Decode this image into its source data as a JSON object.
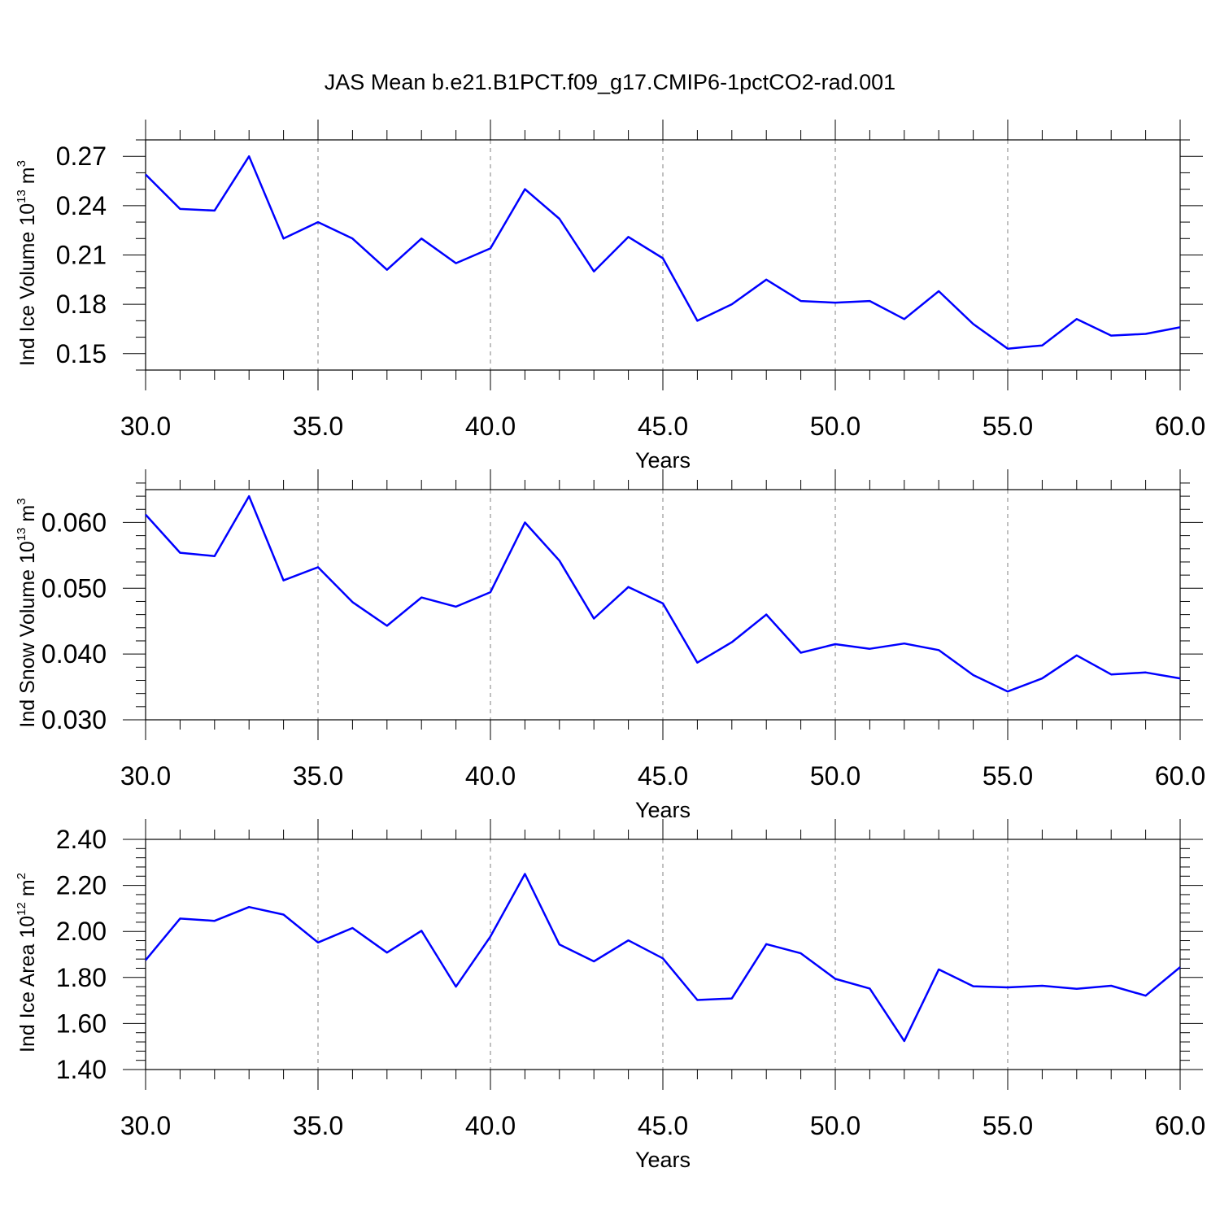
{
  "title": "JAS Mean b.e21.B1PCT.f09_g17.CMIP6-1pctCO2-rad.001",
  "colors": {
    "line": "#0000ff",
    "axis": "#000000",
    "grid": "#808080"
  },
  "chart_data": [
    {
      "type": "line",
      "ylabel": "Ind Ice Volume 10",
      "ylabel_exp": "13",
      "ylabel_unit": " m",
      "ylabel_unit_exp": "3",
      "xlabel": "Years",
      "xlim": [
        30,
        60
      ],
      "ylim": [
        0.14,
        0.28
      ],
      "ymajor": [
        0.15,
        0.18,
        0.21,
        0.24,
        0.27
      ],
      "ytick_labels": [
        "0.15",
        "0.18",
        "0.21",
        "0.24",
        "0.27"
      ],
      "yminor_step": 0.01,
      "xmajor": [
        30,
        35,
        40,
        45,
        50,
        55,
        60
      ],
      "xtick_labels": [
        "30.0",
        "35.0",
        "40.0",
        "45.0",
        "50.0",
        "55.0",
        "60.0"
      ],
      "x": [
        30,
        31,
        32,
        33,
        34,
        35,
        36,
        37,
        38,
        39,
        40,
        41,
        42,
        43,
        44,
        45,
        46,
        47,
        48,
        49,
        50,
        51,
        52,
        53,
        54,
        55,
        56,
        57,
        58,
        59,
        60
      ],
      "series": [
        {
          "name": "Ind Ice Volume",
          "values": [
            0.259,
            0.238,
            0.237,
            0.27,
            0.22,
            0.23,
            0.22,
            0.201,
            0.22,
            0.205,
            0.214,
            0.25,
            0.232,
            0.2,
            0.221,
            0.208,
            0.17,
            0.18,
            0.195,
            0.182,
            0.181,
            0.182,
            0.171,
            0.188,
            0.168,
            0.153,
            0.155,
            0.171,
            0.161,
            0.162,
            0.166
          ]
        }
      ]
    },
    {
      "type": "line",
      "ylabel": "Ind Snow Volume 10",
      "ylabel_exp": "13",
      "ylabel_unit": " m",
      "ylabel_unit_exp": "3",
      "xlabel": "Years",
      "xlim": [
        30,
        60
      ],
      "ylim": [
        0.03,
        0.065
      ],
      "ymajor": [
        0.03,
        0.04,
        0.05,
        0.06
      ],
      "ytick_labels": [
        "0.030",
        "0.040",
        "0.050",
        "0.060"
      ],
      "yminor_step": 0.002,
      "xmajor": [
        30,
        35,
        40,
        45,
        50,
        55,
        60
      ],
      "xtick_labels": [
        "30.0",
        "35.0",
        "40.0",
        "45.0",
        "50.0",
        "55.0",
        "60.0"
      ],
      "x": [
        30,
        31,
        32,
        33,
        34,
        35,
        36,
        37,
        38,
        39,
        40,
        41,
        42,
        43,
        44,
        45,
        46,
        47,
        48,
        49,
        50,
        51,
        52,
        53,
        54,
        55,
        56,
        57,
        58,
        59,
        60
      ],
      "series": [
        {
          "name": "Ind Snow Volume",
          "values": [
            0.0612,
            0.0554,
            0.0549,
            0.064,
            0.0512,
            0.0532,
            0.0479,
            0.0443,
            0.0486,
            0.0472,
            0.0494,
            0.06,
            0.0542,
            0.0454,
            0.0502,
            0.0477,
            0.0387,
            0.0418,
            0.046,
            0.0402,
            0.0415,
            0.0408,
            0.0416,
            0.0406,
            0.0368,
            0.0343,
            0.0363,
            0.0398,
            0.0369,
            0.0372,
            0.0363
          ]
        }
      ]
    },
    {
      "type": "line",
      "ylabel": "Ind Ice Area 10",
      "ylabel_exp": "12",
      "ylabel_unit": " m",
      "ylabel_unit_exp": "2",
      "xlabel": "Years",
      "xlim": [
        30,
        60
      ],
      "ylim": [
        1.4,
        2.4
      ],
      "ymajor": [
        1.4,
        1.6,
        1.8,
        2.0,
        2.2,
        2.4
      ],
      "ytick_labels": [
        "1.40",
        "1.60",
        "1.80",
        "2.00",
        "2.20",
        "2.40"
      ],
      "yminor_step": 0.04,
      "xmajor": [
        30,
        35,
        40,
        45,
        50,
        55,
        60
      ],
      "xtick_labels": [
        "30.0",
        "35.0",
        "40.0",
        "45.0",
        "50.0",
        "55.0",
        "60.0"
      ],
      "x": [
        30,
        31,
        32,
        33,
        34,
        35,
        36,
        37,
        38,
        39,
        40,
        41,
        42,
        43,
        44,
        45,
        46,
        47,
        48,
        49,
        50,
        51,
        52,
        53,
        54,
        55,
        56,
        57,
        58,
        59,
        60
      ],
      "series": [
        {
          "name": "Ind Ice Area",
          "values": [
            1.875,
            2.056,
            2.046,
            2.106,
            2.073,
            1.952,
            2.015,
            1.908,
            2.003,
            1.76,
            1.978,
            2.25,
            1.943,
            1.87,
            1.961,
            1.883,
            1.702,
            1.709,
            1.945,
            1.905,
            1.794,
            1.752,
            1.524,
            1.835,
            1.762,
            1.757,
            1.764,
            1.751,
            1.764,
            1.721,
            1.845
          ]
        }
      ]
    }
  ]
}
